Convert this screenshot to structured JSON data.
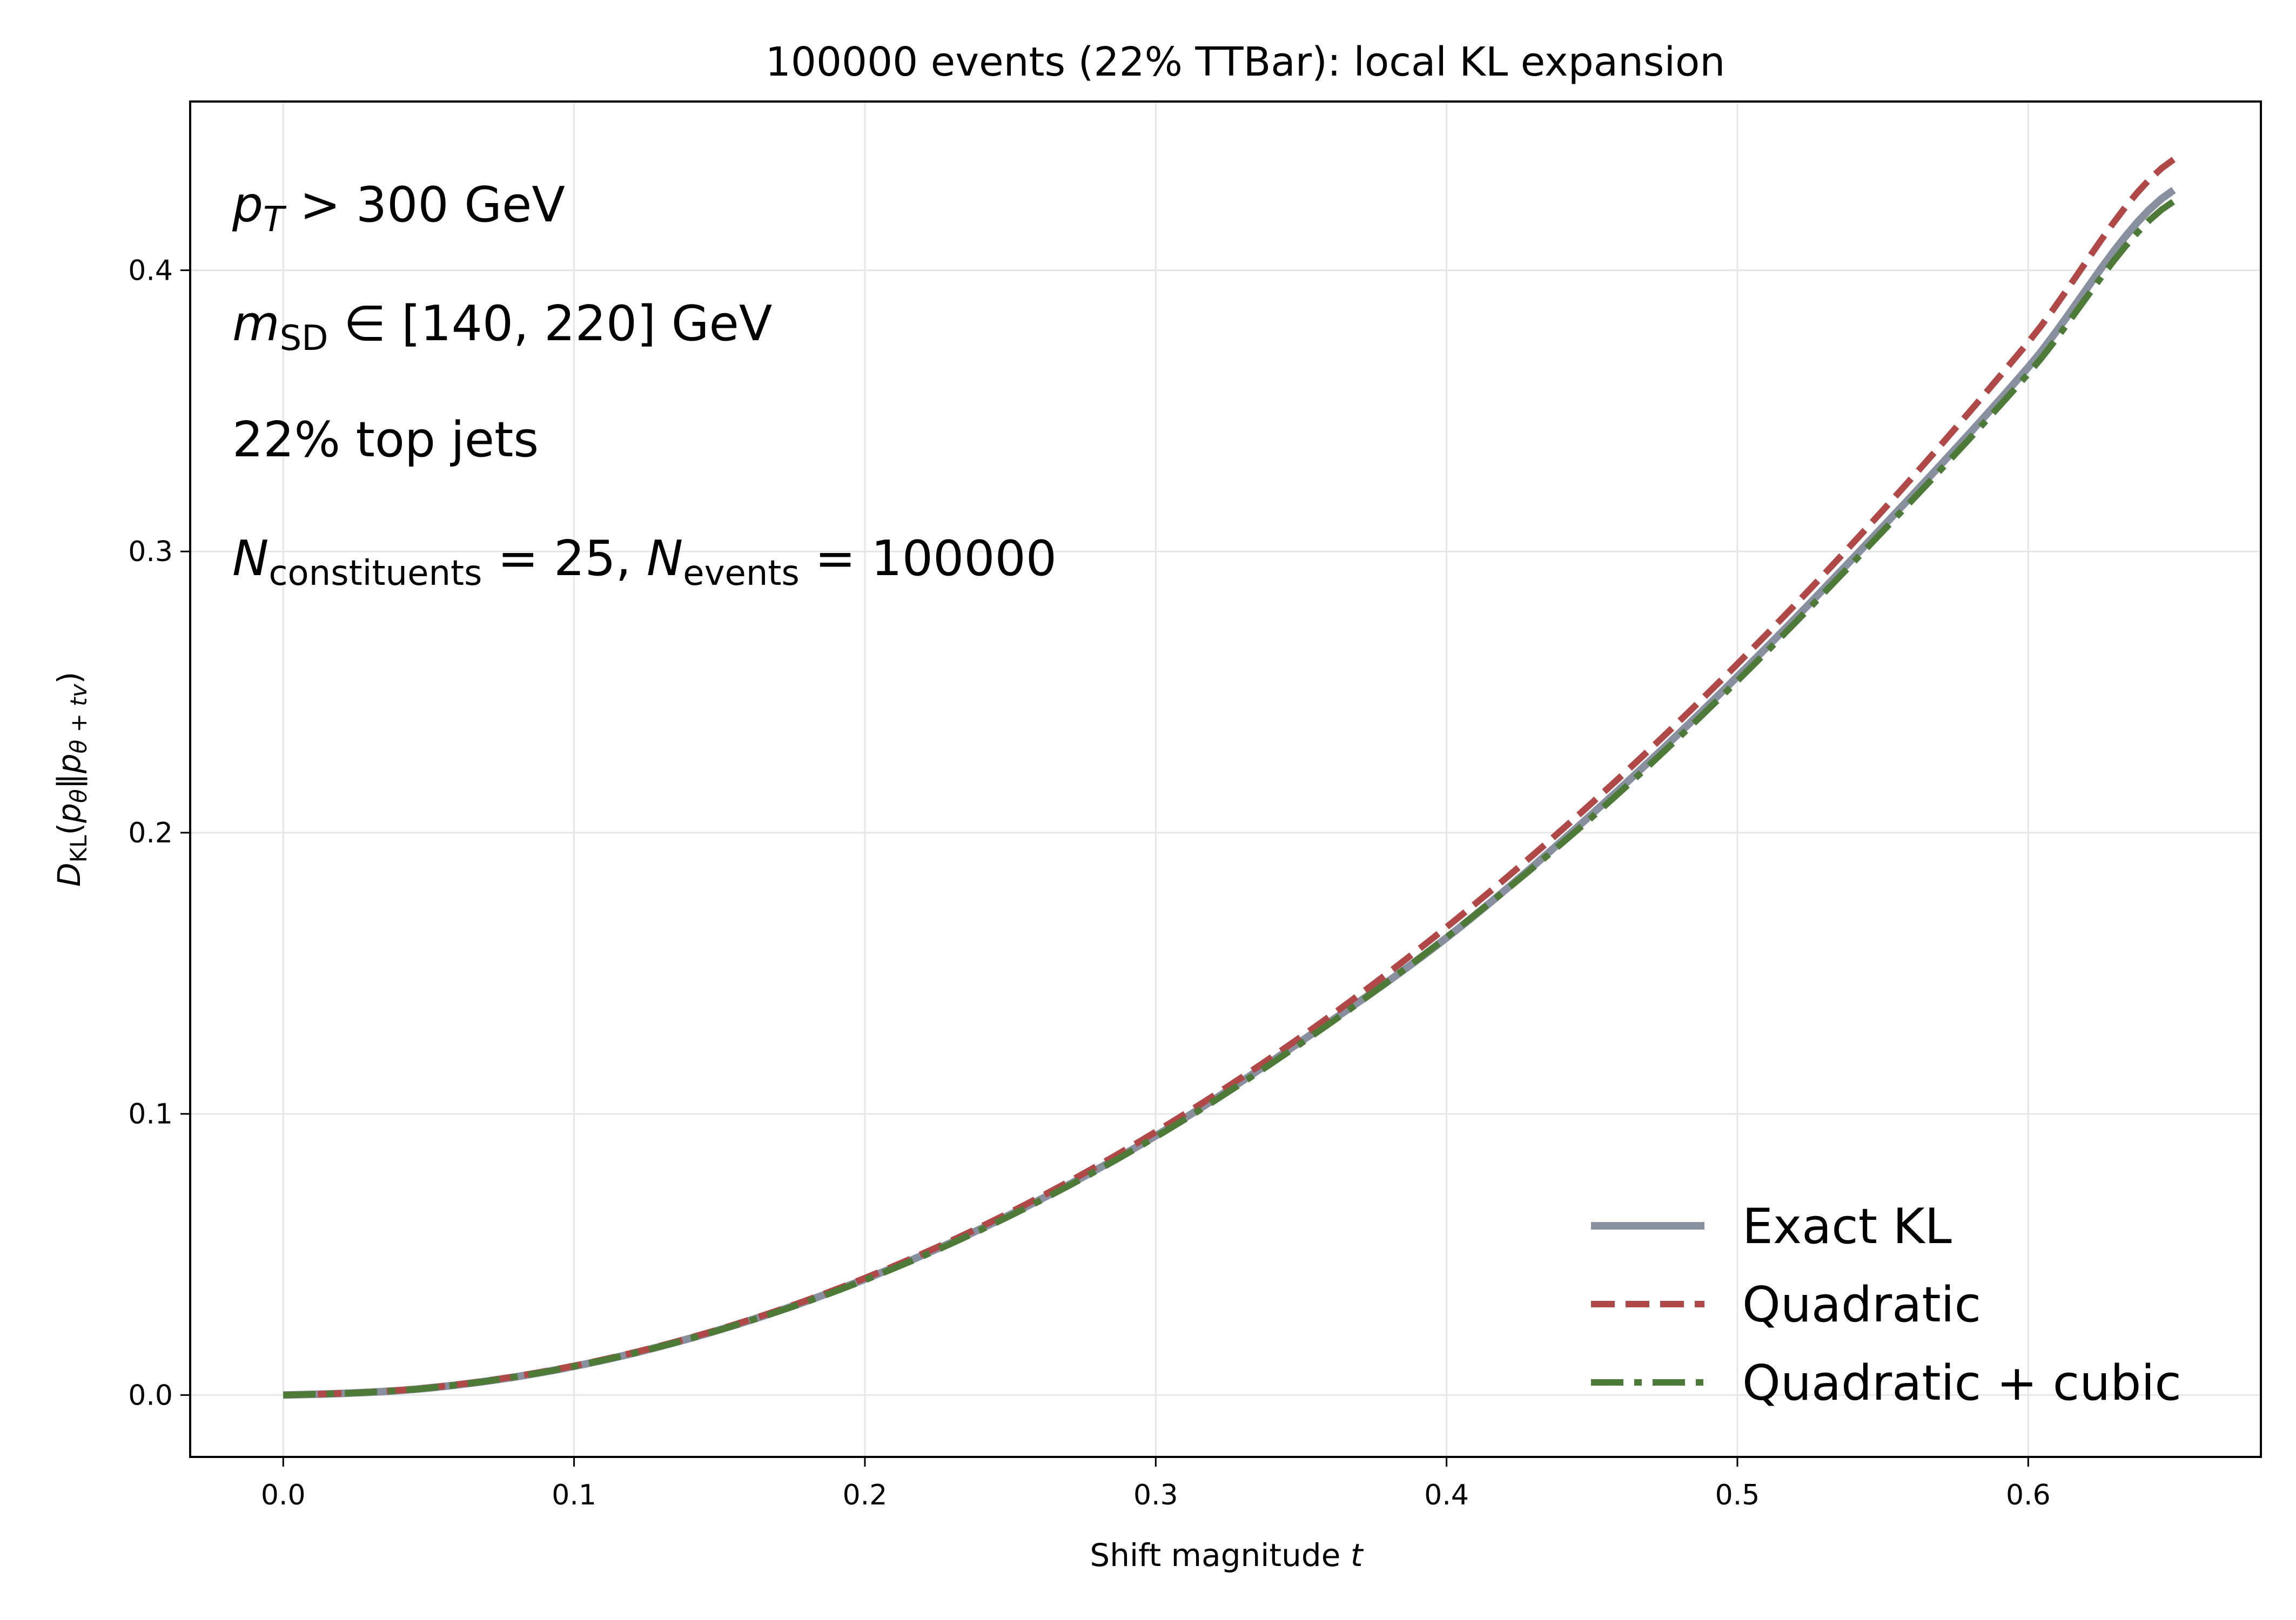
{
  "chart_data": {
    "type": "line",
    "title": "100000 events (22% TTBar): local KL expansion",
    "xlabel": "Shift magnitude t",
    "ylabel": "D_KL(p_θ‖p_θ+tv)",
    "xlim": [
      -0.032,
      0.68
    ],
    "ylim": [
      -0.022,
      0.46
    ],
    "grid": true,
    "legend_position": "lower-right",
    "x_ticks": [
      0.0,
      0.1,
      0.2,
      0.3,
      0.4,
      0.5,
      0.6
    ],
    "y_ticks": [
      0.0,
      0.1,
      0.2,
      0.3,
      0.4
    ],
    "x_tick_labels": [
      "0.0",
      "0.1",
      "0.2",
      "0.3",
      "0.4",
      "0.5",
      "0.6"
    ],
    "y_tick_labels": [
      "0.0",
      "0.1",
      "0.2",
      "0.3",
      "0.4"
    ],
    "x": [
      0.0,
      0.05,
      0.1,
      0.15,
      0.2,
      0.25,
      0.3,
      0.35,
      0.4,
      0.45,
      0.5,
      0.55,
      0.6,
      0.65
    ],
    "series": [
      {
        "name": "Exact KL",
        "color": "#8890a0",
        "style": "solid",
        "values": [
          0.0,
          0.0025,
          0.0102,
          0.0232,
          0.0412,
          0.0642,
          0.0922,
          0.1258,
          0.1626,
          0.2066,
          0.2555,
          0.3088,
          0.3655,
          0.4285
        ]
      },
      {
        "name": "Quadratic",
        "color": "#b04848",
        "style": "dashed",
        "values": [
          0.0,
          0.0026,
          0.0104,
          0.0234,
          0.0416,
          0.065,
          0.0936,
          0.1274,
          0.1664,
          0.2106,
          0.26,
          0.3146,
          0.3744,
          0.4394
        ]
      },
      {
        "name": "Quadratic + cubic",
        "color": "#4e7a38",
        "style": "dashdot",
        "values": [
          0.0,
          0.0025,
          0.0102,
          0.0231,
          0.0409,
          0.0638,
          0.0918,
          0.1251,
          0.1628,
          0.2055,
          0.254,
          0.3072,
          0.3632,
          0.4245
        ]
      }
    ],
    "annotations": [
      "p_T > 300 GeV",
      "m_SD ∈ [140, 220] GeV",
      "22% top jets",
      "N_constituents = 25, N_events = 100000"
    ]
  }
}
